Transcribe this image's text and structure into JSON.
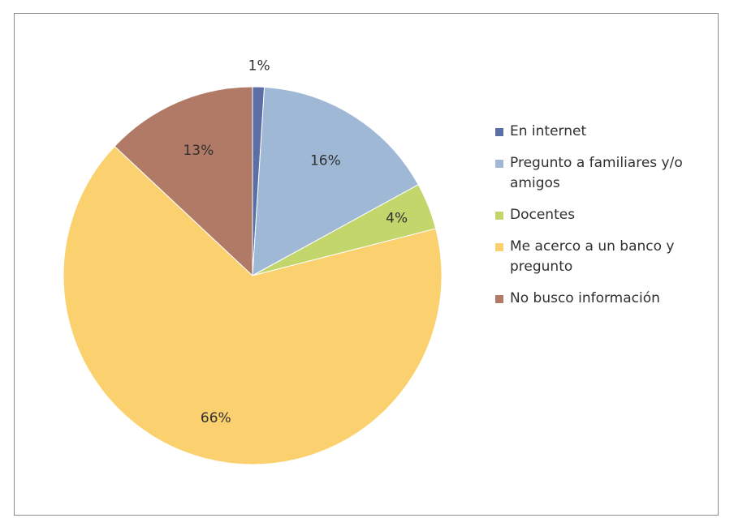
{
  "chart_data": {
    "type": "pie",
    "slices": [
      {
        "label": "En internet",
        "value": 1,
        "display": "1%",
        "color": "#5b6fa4"
      },
      {
        "label": "Pregunto a familiares y/o amigos",
        "value": 16,
        "display": "16%",
        "color": "#9fb8d6"
      },
      {
        "label": "Docentes",
        "value": 4,
        "display": "4%",
        "color": "#c3d66b"
      },
      {
        "label": "Me acerco a un banco y pregunto",
        "value": 66,
        "display": "66%",
        "color": "#fbd06e"
      },
      {
        "label": "No busco información",
        "value": 13,
        "display": "13%",
        "color": "#b07a66"
      }
    ],
    "legend_position": "right"
  },
  "legend": {
    "items": [
      {
        "line1": "En internet",
        "line2": "",
        "color": "#5b6fa4"
      },
      {
        "line1": "Pregunto a familiares y/o",
        "line2": "amigos",
        "color": "#9fb8d6"
      },
      {
        "line1": "Docentes",
        "line2": "",
        "color": "#c3d66b"
      },
      {
        "line1": "Me acerco a un banco y",
        "line2": "pregunto",
        "color": "#fbd06e"
      },
      {
        "line1": "No busco información",
        "line2": "",
        "color": "#b07a66"
      }
    ]
  }
}
